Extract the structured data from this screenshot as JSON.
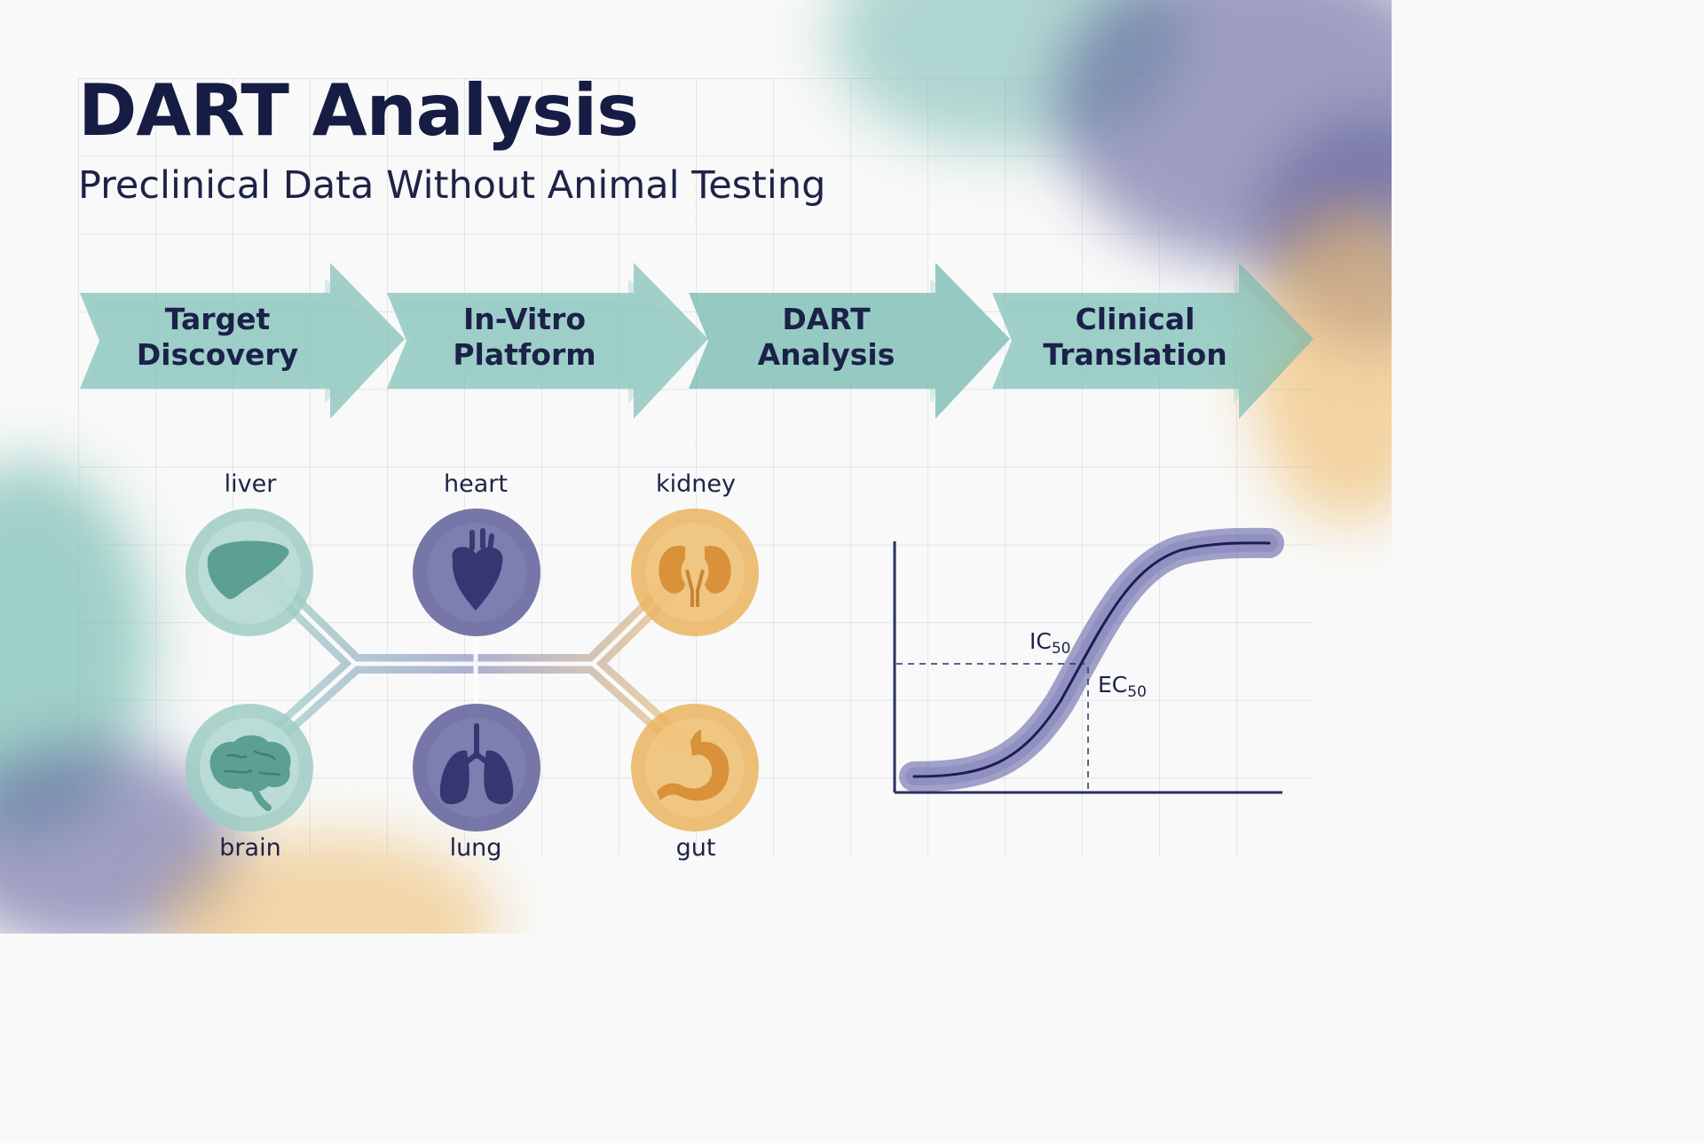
{
  "header": {
    "title": "DART Analysis",
    "subtitle": "Preclinical Data Without Animal Testing"
  },
  "pipeline": {
    "steps": [
      {
        "line1": "Target",
        "line2": "Discovery"
      },
      {
        "line1": "In-Vitro",
        "line2": "Platform"
      },
      {
        "line1": "DART",
        "line2": "Analysis"
      },
      {
        "line1": "Clinical",
        "line2": "Translation"
      }
    ]
  },
  "organ_chip": {
    "organs": [
      {
        "label": "liver",
        "icon": "liver-icon",
        "color": "#9ecdc4"
      },
      {
        "label": "heart",
        "icon": "heart-icon",
        "color": "#5f5f9a"
      },
      {
        "label": "kidney",
        "icon": "kidney-icon",
        "color": "#eab45f"
      },
      {
        "label": "brain",
        "icon": "brain-icon",
        "color": "#9ecdc4"
      },
      {
        "label": "lung",
        "icon": "lung-icon",
        "color": "#5f5f9a"
      },
      {
        "label": "gut",
        "icon": "gut-icon",
        "color": "#eab45f"
      }
    ]
  },
  "dose_response": {
    "ic50_label": "IC",
    "ic50_sub": "50",
    "ec50_label": "EC",
    "ec50_sub": "50"
  },
  "colors": {
    "navy": "#171c45",
    "teal": "#78bdb2",
    "indigo": "#4e4e8e",
    "amber": "#e9a94a"
  }
}
